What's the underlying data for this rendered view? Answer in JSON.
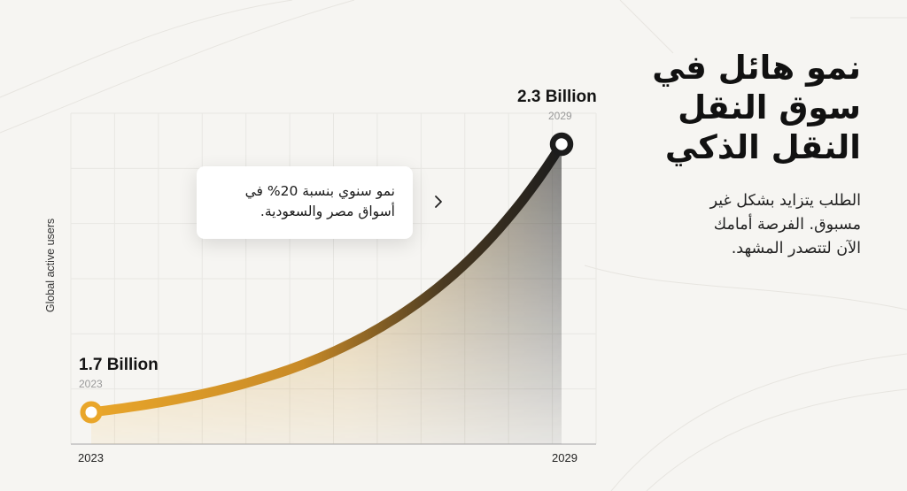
{
  "headline": {
    "lines": [
      "نمو هائل في",
      "سوق النقل",
      "النقل الذكي"
    ]
  },
  "description": {
    "lines": [
      "الطلب يتزايد بشكل غير",
      "مسبوق. الفرصة أمامك",
      "الآن لتتصدر المشهد."
    ]
  },
  "tooltip": {
    "lines": [
      "نمو سنوي بنسبة 20% في",
      "أسواق مصر والسعودية."
    ],
    "icon": "chevron-right-icon"
  },
  "colors": {
    "start": "#e9a62a",
    "end": "#1c1c1c",
    "background": "#f6f5f2"
  },
  "chart_data": {
    "type": "area",
    "ylabel": "Global active users",
    "xlabel": "",
    "x_tick_labels": [
      "2023",
      "2029"
    ],
    "series": [
      {
        "x": [
          2023,
          2029
        ],
        "y": [
          1.7,
          2.3
        ],
        "curve": "exponential"
      }
    ],
    "start_point": {
      "label": "1.7 Billion",
      "year": "2023"
    },
    "end_point": {
      "label": "2.3 Billion",
      "year": "2029"
    },
    "grid": true,
    "legend": "none"
  }
}
